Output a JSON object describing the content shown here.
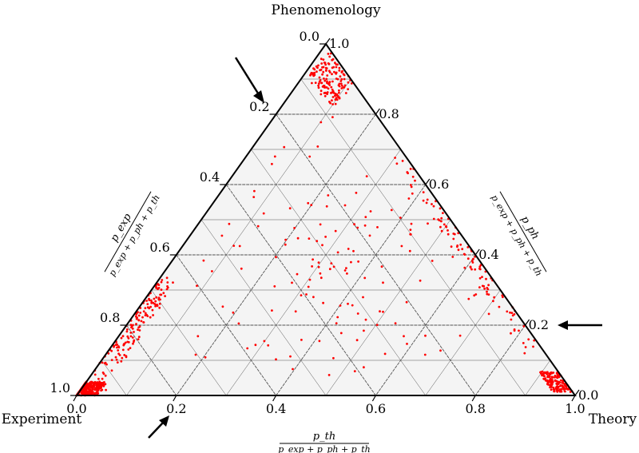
{
  "chart_data": {
    "type": "scatter",
    "subtype": "ternary",
    "corner_labels": {
      "top": "Phenomenology",
      "left": "Experiment",
      "right": "Theory"
    },
    "axis_labels": {
      "bottom": {
        "num": "p_th",
        "den": "p_exp + p_ph + p_th"
      },
      "left": {
        "num": "p_exp",
        "den": "p_exp + p_ph + p_th"
      },
      "right": {
        "num": "p_ph",
        "den": "p_exp + p_ph + p_th"
      }
    },
    "ticks": {
      "bottom": [
        "0.0",
        "0.2",
        "0.4",
        "0.6",
        "0.8",
        "1.0"
      ],
      "left": [
        "0.0",
        "0.2",
        "0.4",
        "0.6",
        "0.8",
        "1.0"
      ],
      "right": [
        "0.0",
        "0.2",
        "0.4",
        "0.6",
        "0.8",
        "1.0"
      ]
    },
    "grid": true,
    "point_color": "#ff0000",
    "arrows": [
      {
        "points_to": "left axis near p_exp 0.2"
      },
      {
        "points_to": "right axis near p_ph 0.2"
      },
      {
        "points_to": "bottom axis near p_th 0.2"
      }
    ],
    "clusters": [
      {
        "name": "experiment corner",
        "center": [
          0.97,
          0.02,
          0.01
        ],
        "spread": [
          0.03,
          0.02,
          0.03
        ],
        "n": 320
      },
      {
        "name": "left edge",
        "center": [
          0.8,
          0.18,
          0.02
        ],
        "spread": [
          0.18,
          0.18,
          0.02
        ],
        "n": 170
      },
      {
        "name": "theory corner",
        "center": [
          0.02,
          0.04,
          0.94
        ],
        "spread": [
          0.02,
          0.03,
          0.05
        ],
        "n": 150
      },
      {
        "name": "right edge",
        "center": [
          0.02,
          0.4,
          0.58
        ],
        "spread": [
          0.02,
          0.3,
          0.3
        ],
        "n": 110
      },
      {
        "name": "phenomenology corner",
        "center": [
          0.04,
          0.9,
          0.06
        ],
        "spread": [
          0.04,
          0.08,
          0.05
        ],
        "n": 140
      },
      {
        "name": "interior",
        "center": [
          0.3,
          0.35,
          0.35
        ],
        "spread": [
          0.25,
          0.3,
          0.3
        ],
        "n": 130
      }
    ]
  }
}
